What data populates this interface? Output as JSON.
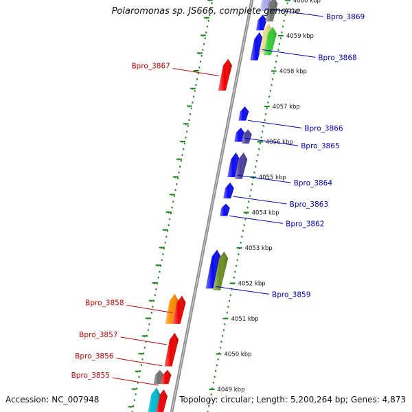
{
  "title": "Polaromonas sp. JS666, complete genome",
  "footer": {
    "accession": "Accession: NC_007948",
    "summary": "Topology: circular; Length: 5,200,264 bp; Genes: 4,873"
  },
  "colors": {
    "backbone": "#8c8c8c",
    "tick": "#228b22",
    "label_forward": "#0000cc",
    "label_reverse": "#cc0000"
  },
  "scale": {
    "unit": "kbp",
    "ticks": [
      4049,
      4050,
      4051,
      4052,
      4053,
      4054,
      4055,
      4056,
      4057,
      4058,
      4059,
      4060
    ],
    "labels": [
      "4049 kbp",
      "4050 kbp",
      "4051 kbp",
      "4052 kbp",
      "4053 kbp",
      "4054 kbp",
      "4055 kbp",
      "4056 kbp",
      "4057 kbp",
      "4058 kbp",
      "4059 kbp",
      "4060 kbp"
    ]
  },
  "genes": [
    {
      "kb": 4059.7,
      "len": 0.45,
      "lane": "fwd1",
      "color": "#aaaaee"
    },
    {
      "kb": 4059.15,
      "len": 0.45,
      "lane": "fwd1",
      "color": "#0a0af0"
    },
    {
      "kb": 4059.4,
      "len": 0.7,
      "lane": "fwd2",
      "color": "#707070"
    },
    {
      "kb": 4058.3,
      "len": 0.8,
      "lane": "fwd1",
      "color": "#0a0af0"
    },
    {
      "kb": 4058.5,
      "len": 0.85,
      "lane": "fwd2",
      "color": "#e8dc8a"
    },
    {
      "kb": 4058.45,
      "len": 0.8,
      "lane": "fwd3",
      "color": "#33cc33"
    },
    {
      "kb": 4057.45,
      "len": 0.9,
      "lane": "rev1",
      "color": "#ee0000"
    },
    {
      "kb": 4056.6,
      "len": 0.4,
      "lane": "fwd1",
      "color": "#0a0af0"
    },
    {
      "kb": 4056.0,
      "len": 0.4,
      "lane": "fwd1",
      "color": "#0a0af0"
    },
    {
      "kb": 4055.95,
      "len": 0.4,
      "lane": "fwd2",
      "color": "#4a3e9e"
    },
    {
      "kb": 4055.0,
      "len": 0.7,
      "lane": "fwd1",
      "color": "#0a0af0"
    },
    {
      "kb": 4054.95,
      "len": 0.75,
      "lane": "fwd2",
      "color": "#4a3e9e"
    },
    {
      "kb": 4054.4,
      "len": 0.45,
      "lane": "fwd1",
      "color": "#0a0af0"
    },
    {
      "kb": 4053.9,
      "len": 0.35,
      "lane": "fwd1",
      "color": "#0a0af0"
    },
    {
      "kb": 4051.85,
      "len": 1.1,
      "lane": "fwd1",
      "color": "#0a0af0"
    },
    {
      "kb": 4051.8,
      "len": 1.1,
      "lane": "fwd2",
      "color": "#6b8e23"
    },
    {
      "kb": 4050.85,
      "len": 0.85,
      "lane": "rev2",
      "color": "#ff8c00"
    },
    {
      "kb": 4050.85,
      "len": 0.8,
      "lane": "rev1",
      "color": "#ee0000"
    },
    {
      "kb": 4049.65,
      "len": 0.95,
      "lane": "rev1",
      "color": "#ee0000"
    },
    {
      "kb": 4049.15,
      "len": 0.4,
      "lane": "rev2",
      "color": "#707070"
    },
    {
      "kb": 4049.15,
      "len": 0.4,
      "lane": "rev1",
      "color": "#ee0000"
    },
    {
      "kb": 4048.2,
      "len": 0.8,
      "lane": "rev1",
      "color": "#ee0000"
    },
    {
      "kb": 4048.05,
      "len": 1.0,
      "lane": "rev2",
      "color": "#00bcd4"
    }
  ],
  "labels": [
    {
      "text": "Bpro_3869",
      "side": "right",
      "kb": 4059.6
    },
    {
      "text": "Bpro_3868",
      "side": "right",
      "kb": 4058.45
    },
    {
      "text": "Bpro_3867",
      "side": "left",
      "kb": 4058.0
    },
    {
      "text": "Bpro_3866",
      "side": "right",
      "kb": 4056.45
    },
    {
      "text": "Bpro_3865",
      "side": "right",
      "kb": 4055.95
    },
    {
      "text": "Bpro_3864",
      "side": "right",
      "kb": 4054.9
    },
    {
      "text": "Bpro_3863",
      "side": "right",
      "kb": 4054.3
    },
    {
      "text": "Bpro_3862",
      "side": "right",
      "kb": 4053.75
    },
    {
      "text": "Bpro_3859",
      "side": "right",
      "kb": 4051.75
    },
    {
      "text": "Bpro_3858",
      "side": "left",
      "kb": 4051.3
    },
    {
      "text": "Bpro_3857",
      "side": "left",
      "kb": 4050.4
    },
    {
      "text": "Bpro_3856",
      "side": "left",
      "kb": 4049.8
    },
    {
      "text": "Bpro_3855",
      "side": "left",
      "kb": 4049.25
    }
  ]
}
